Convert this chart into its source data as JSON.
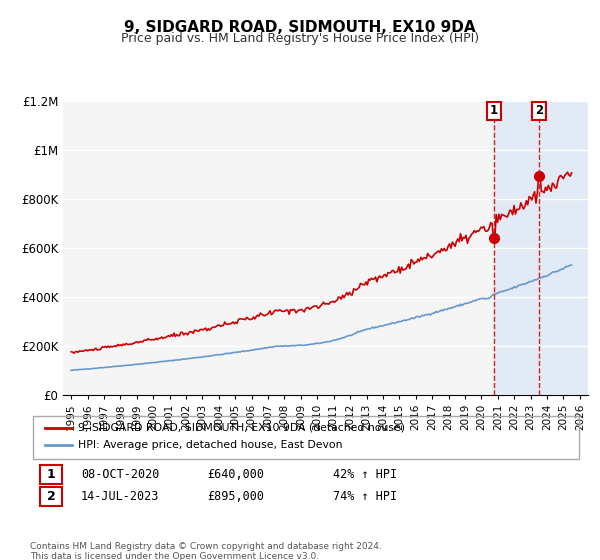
{
  "title": "9, SIDGARD ROAD, SIDMOUTH, EX10 9DA",
  "subtitle": "Price paid vs. HM Land Registry's House Price Index (HPI)",
  "ylim": [
    0,
    1200000
  ],
  "xlim": [
    1994.5,
    2026.5
  ],
  "yticks": [
    0,
    200000,
    400000,
    600000,
    800000,
    1000000,
    1200000
  ],
  "ytick_labels": [
    "£0",
    "£200K",
    "£400K",
    "£600K",
    "£800K",
    "£1M",
    "£1.2M"
  ],
  "xticks": [
    1995,
    1996,
    1997,
    1998,
    1999,
    2000,
    2001,
    2002,
    2003,
    2004,
    2005,
    2006,
    2007,
    2008,
    2009,
    2010,
    2011,
    2012,
    2013,
    2014,
    2015,
    2016,
    2017,
    2018,
    2019,
    2020,
    2021,
    2022,
    2023,
    2024,
    2025,
    2026
  ],
  "hpi_color": "#6699cc",
  "price_color": "#cc0000",
  "marker1_x": 2020.77,
  "marker1_y": 640000,
  "marker2_x": 2023.54,
  "marker2_y": 895000,
  "vline1_x": 2020.77,
  "vline2_x": 2023.54,
  "shade_start": 2020.77,
  "shade_end": 2026.5,
  "legend_label1": "9, SIDGARD ROAD, SIDMOUTH, EX10 9DA (detached house)",
  "legend_label2": "HPI: Average price, detached house, East Devon",
  "note1_date": "08-OCT-2020",
  "note1_price": "£640,000",
  "note1_hpi": "42% ↑ HPI",
  "note2_date": "14-JUL-2023",
  "note2_price": "£895,000",
  "note2_hpi": "74% ↑ HPI",
  "footer": "Contains HM Land Registry data © Crown copyright and database right 2024.\nThis data is licensed under the Open Government Licence v3.0.",
  "background_color": "#ffffff",
  "plot_bg_color": "#f5f5f5"
}
